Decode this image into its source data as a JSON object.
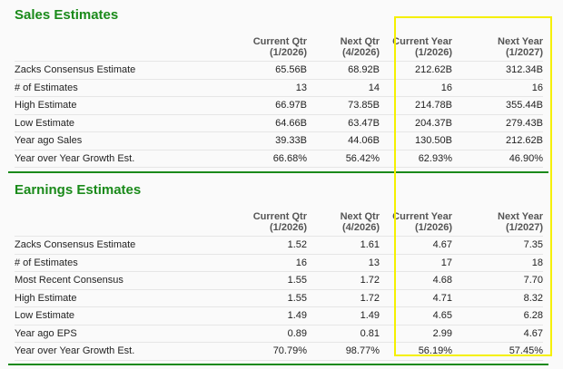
{
  "sales": {
    "title": "Sales Estimates",
    "headers": [
      [
        "Current Qtr",
        "(1/2026)"
      ],
      [
        "Next Qtr",
        "(4/2026)"
      ],
      [
        "Current Year",
        "(1/2026)"
      ],
      [
        "Next Year",
        "(1/2027)"
      ]
    ],
    "rows": [
      {
        "label": "Zacks Consensus Estimate",
        "values": [
          "65.56B",
          "68.92B",
          "212.62B",
          "312.34B"
        ]
      },
      {
        "label": "# of Estimates",
        "values": [
          "13",
          "14",
          "16",
          "16"
        ]
      },
      {
        "label": "High Estimate",
        "values": [
          "66.97B",
          "73.85B",
          "214.78B",
          "355.44B"
        ]
      },
      {
        "label": "Low Estimate",
        "values": [
          "64.66B",
          "63.47B",
          "204.37B",
          "279.43B"
        ]
      },
      {
        "label": "Year ago Sales",
        "values": [
          "39.33B",
          "44.06B",
          "130.50B",
          "212.62B"
        ]
      },
      {
        "label": "Year over Year Growth Est.",
        "values": [
          "66.68%",
          "56.42%",
          "62.93%",
          "46.90%"
        ]
      }
    ]
  },
  "earnings": {
    "title": "Earnings Estimates",
    "headers": [
      [
        "Current Qtr",
        "(1/2026)"
      ],
      [
        "Next Qtr",
        "(4/2026)"
      ],
      [
        "Current Year",
        "(1/2026)"
      ],
      [
        "Next Year",
        "(1/2027)"
      ]
    ],
    "rows": [
      {
        "label": "Zacks Consensus Estimate",
        "values": [
          "1.52",
          "1.61",
          "4.67",
          "7.35"
        ]
      },
      {
        "label": "# of Estimates",
        "values": [
          "16",
          "13",
          "17",
          "18"
        ]
      },
      {
        "label": "Most Recent Consensus",
        "values": [
          "1.55",
          "1.72",
          "4.68",
          "7.70"
        ]
      },
      {
        "label": "High Estimate",
        "values": [
          "1.55",
          "1.72",
          "4.71",
          "8.32"
        ]
      },
      {
        "label": "Low Estimate",
        "values": [
          "1.49",
          "1.49",
          "4.65",
          "6.28"
        ]
      },
      {
        "label": "Year ago EPS",
        "values": [
          "0.89",
          "0.81",
          "2.99",
          "4.67"
        ]
      },
      {
        "label": "Year over Year Growth Est.",
        "values": [
          "70.79%",
          "98.77%",
          "56.19%",
          "57.45%"
        ]
      }
    ]
  },
  "colors": {
    "accent": "#1a8a1a",
    "highlight": "#f5f000"
  }
}
